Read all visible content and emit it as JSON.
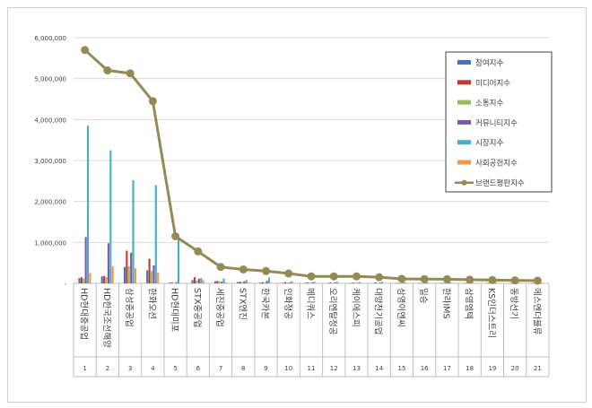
{
  "chart_data": {
    "type": "bar+line",
    "title": "",
    "xlabel": "",
    "ylabel": "",
    "ylim": [
      0,
      6000000
    ],
    "yticks": [
      0,
      1000000,
      2000000,
      3000000,
      4000000,
      5000000,
      6000000
    ],
    "ytick_labels": [
      "-",
      "1,000,000",
      "2,000,000",
      "3,000,000",
      "4,000,000",
      "5,000,000",
      "6,000,000"
    ],
    "grid": true,
    "legend_position": "top-right",
    "ranks": [
      "1",
      "2",
      "3",
      "4",
      "5",
      "6",
      "7",
      "8",
      "9",
      "10",
      "11",
      "12",
      "13",
      "14",
      "15",
      "16",
      "17",
      "18",
      "19",
      "20",
      "21"
    ],
    "categories": [
      "HD현대중공업",
      "HD한국조선해양",
      "삼성중공업",
      "한화오션",
      "HD현대미포",
      "STX중공업",
      "세진중공업",
      "STX엔진",
      "한국카본",
      "인화정공",
      "메디쿼스",
      "오리엔탈정공",
      "케이에스피",
      "대양전기공업",
      "삼영이엔씨",
      "일승",
      "한라IMS",
      "삼영엠텍",
      "KS인더스트리",
      "동방선기",
      "에스엔더블류"
    ],
    "series": [
      {
        "name": "참여지수",
        "color": "#4472c4",
        "values": [
          130000,
          170000,
          400000,
          320000,
          20000,
          80000,
          50000,
          30000,
          20000,
          15000,
          15000,
          10000,
          10000,
          10000,
          5000,
          5000,
          5000,
          5000,
          5000,
          5000,
          5000
        ]
      },
      {
        "name": "미디어지수",
        "color": "#c0392b",
        "values": [
          150000,
          180000,
          800000,
          600000,
          20000,
          150000,
          60000,
          40000,
          30000,
          30000,
          20000,
          20000,
          20000,
          20000,
          10000,
          10000,
          10000,
          10000,
          10000,
          10000,
          10000
        ]
      },
      {
        "name": "소통지수",
        "color": "#9bbb59",
        "values": [
          120000,
          150000,
          420000,
          300000,
          10000,
          70000,
          50000,
          30000,
          20000,
          20000,
          10000,
          10000,
          10000,
          10000,
          5000,
          5000,
          5000,
          5000,
          5000,
          5000,
          5000
        ]
      },
      {
        "name": "커뮤니티지수",
        "color": "#7f56a8",
        "values": [
          1130000,
          980000,
          750000,
          440000,
          30000,
          110000,
          40000,
          50000,
          60000,
          20000,
          20000,
          20000,
          15000,
          20000,
          10000,
          10000,
          10000,
          10000,
          10000,
          10000,
          10000
        ]
      },
      {
        "name": "시장지수",
        "color": "#4bacc6",
        "values": [
          3850000,
          3250000,
          2520000,
          2400000,
          1090000,
          130000,
          120000,
          80000,
          140000,
          50000,
          40000,
          40000,
          30000,
          40000,
          30000,
          30000,
          30000,
          20000,
          20000,
          20000,
          20000
        ]
      },
      {
        "name": "사회공헌지수",
        "color": "#f79646",
        "values": [
          250000,
          420000,
          370000,
          260000,
          10000,
          80000,
          20000,
          20000,
          10000,
          10000,
          10000,
          10000,
          10000,
          10000,
          5000,
          5000,
          5000,
          5000,
          5000,
          5000,
          5000
        ]
      }
    ],
    "line_series": {
      "name": "브랜드평판지수",
      "color": "#948a54",
      "values": [
        5700000,
        5200000,
        5130000,
        4450000,
        1150000,
        780000,
        400000,
        340000,
        300000,
        240000,
        170000,
        170000,
        170000,
        150000,
        110000,
        105000,
        100000,
        90000,
        80000,
        75000,
        65000
      ]
    }
  }
}
